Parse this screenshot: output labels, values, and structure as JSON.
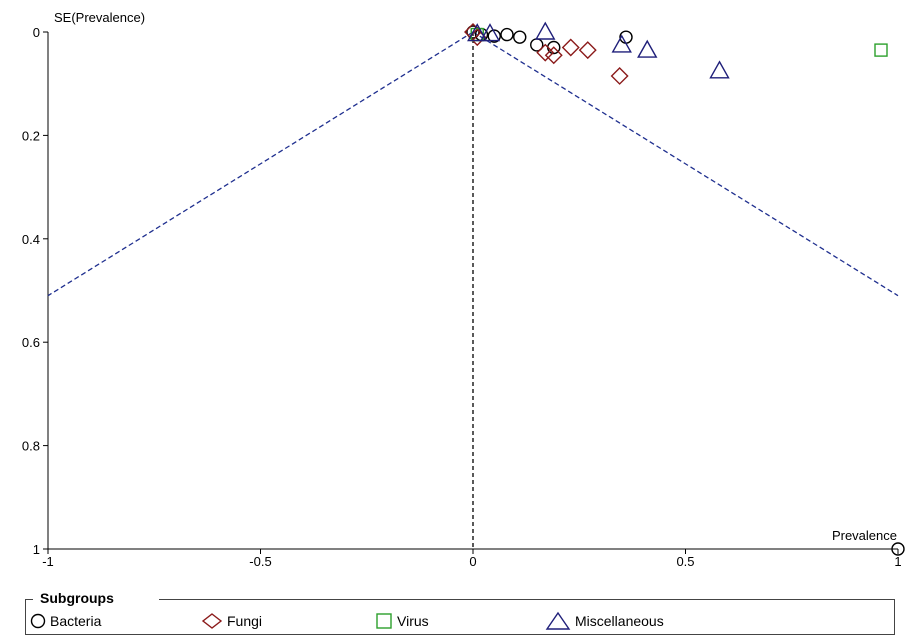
{
  "chart_data": {
    "type": "scatter",
    "title": "",
    "xlabel": "Prevalence",
    "ylabel": "SE(Prevalence)",
    "xlim": [
      -1,
      1
    ],
    "ylim": [
      0,
      1
    ],
    "y_inverted": true,
    "x_ticks": [
      "-1",
      "-0.5",
      "0",
      "0.5",
      "1"
    ],
    "x_tick_values": [
      -1,
      -0.5,
      0,
      0.5,
      1
    ],
    "y_ticks": [
      "0",
      "0.2",
      "0.4",
      "0.6",
      "0.8",
      "1"
    ],
    "y_tick_values": [
      0,
      0.2,
      0.4,
      0.6,
      0.8,
      1
    ],
    "grid": false,
    "reference_lines": {
      "vertical_at": 0,
      "funnel_apex": [
        0,
        0
      ],
      "funnel_left_end": [
        -1,
        0.51
      ],
      "funnel_right_end": [
        1,
        0.51
      ]
    },
    "legend": {
      "title": "Subgroups",
      "placement": "bottom"
    },
    "series": [
      {
        "name": "Bacteria",
        "marker": "circle",
        "color": "#000000",
        "points": [
          {
            "x": 0.0,
            "y": 0.0
          },
          {
            "x": 0.02,
            "y": 0.005
          },
          {
            "x": 0.05,
            "y": 0.008
          },
          {
            "x": 0.08,
            "y": 0.005
          },
          {
            "x": 0.11,
            "y": 0.01
          },
          {
            "x": 0.15,
            "y": 0.025
          },
          {
            "x": 0.19,
            "y": 0.03
          },
          {
            "x": 0.36,
            "y": 0.01
          },
          {
            "x": 1.0,
            "y": 1.0
          }
        ]
      },
      {
        "name": "Fungi",
        "marker": "diamond",
        "color": "#8b1a1a",
        "points": [
          {
            "x": 0.0,
            "y": 0.0
          },
          {
            "x": 0.01,
            "y": 0.01
          },
          {
            "x": 0.17,
            "y": 0.04
          },
          {
            "x": 0.19,
            "y": 0.045
          },
          {
            "x": 0.23,
            "y": 0.03
          },
          {
            "x": 0.27,
            "y": 0.035
          },
          {
            "x": 0.345,
            "y": 0.085
          }
        ]
      },
      {
        "name": "Virus",
        "marker": "square",
        "color": "#2ca02c",
        "points": [
          {
            "x": 0.01,
            "y": 0.005
          },
          {
            "x": 0.96,
            "y": 0.035
          }
        ]
      },
      {
        "name": "Miscellaneous",
        "marker": "triangle",
        "color": "#1f1f7a",
        "points": [
          {
            "x": 0.01,
            "y": 0.003
          },
          {
            "x": 0.04,
            "y": 0.003
          },
          {
            "x": 0.17,
            "y": 0.0
          },
          {
            "x": 0.35,
            "y": 0.025
          },
          {
            "x": 0.41,
            "y": 0.035
          },
          {
            "x": 0.58,
            "y": 0.075
          }
        ]
      }
    ]
  },
  "colors": {
    "funnel_line": "#1f2f8f",
    "center_line": "#000000"
  }
}
